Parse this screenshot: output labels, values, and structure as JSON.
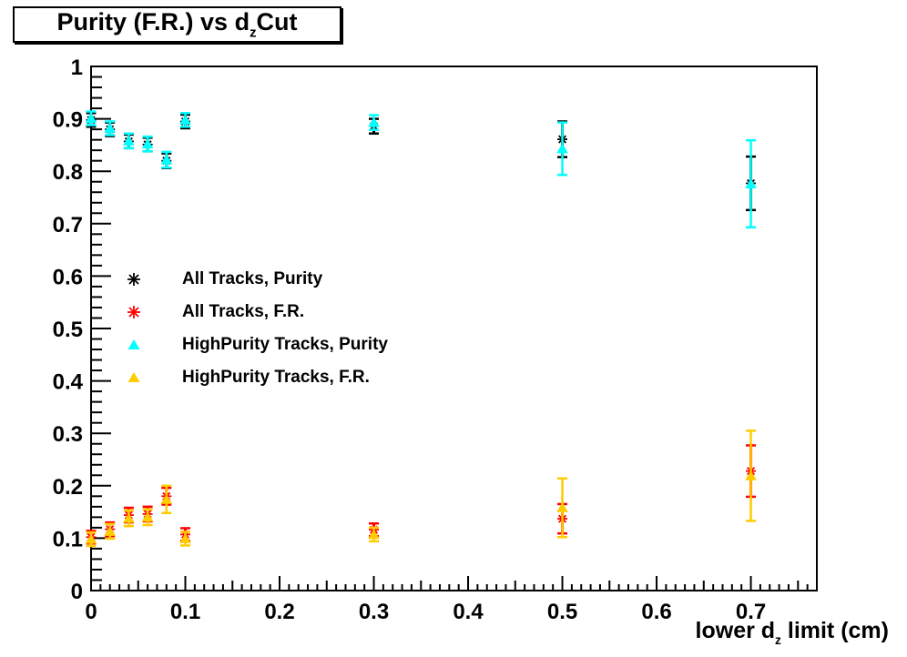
{
  "title": {
    "pre": "Purity (F.R.) vs d",
    "sub": "z",
    "post": "Cut"
  },
  "chart_data": {
    "type": "scatter",
    "title": "Purity (F.R.) vs d_z Cut",
    "xlabel_parts": {
      "pre": "lower d",
      "sub": "z",
      "post": " limit (cm)"
    },
    "ylabel": "",
    "xlim": [
      0,
      0.77
    ],
    "ylim": [
      0,
      1
    ],
    "x_tick_values": [
      0,
      0.1,
      0.2,
      0.3,
      0.4,
      0.5,
      0.6,
      0.7
    ],
    "x_tick_labels": [
      "0",
      "0.1",
      "0.2",
      "0.3",
      "0.4",
      "0.5",
      "0.6",
      "0.7"
    ],
    "x_minor_step": 0.01,
    "y_tick_values": [
      0,
      0.1,
      0.2,
      0.3,
      0.4,
      0.5,
      0.6,
      0.7,
      0.8,
      0.9,
      1
    ],
    "y_tick_labels": [
      "0",
      "0.1",
      "0.2",
      "0.3",
      "0.4",
      "0.5",
      "0.6",
      "0.7",
      "0.8",
      "0.9",
      "1"
    ],
    "y_minor_step": 0.02,
    "grid": false,
    "legend_position": "middle-left",
    "series": [
      {
        "name": "All Tracks, Purity",
        "marker": "asterisk",
        "color": "#000000",
        "points": [
          {
            "x": 0.0,
            "y": 0.898,
            "ey": 0.013
          },
          {
            "x": 0.02,
            "y": 0.88,
            "ey": 0.013
          },
          {
            "x": 0.04,
            "y": 0.857,
            "ey": 0.013
          },
          {
            "x": 0.06,
            "y": 0.851,
            "ey": 0.013
          },
          {
            "x": 0.08,
            "y": 0.82,
            "ey": 0.014
          },
          {
            "x": 0.1,
            "y": 0.895,
            "ey": 0.013
          },
          {
            "x": 0.3,
            "y": 0.886,
            "ey": 0.014
          },
          {
            "x": 0.5,
            "y": 0.861,
            "ey": 0.034
          },
          {
            "x": 0.7,
            "y": 0.777,
            "ey": 0.051
          }
        ]
      },
      {
        "name": "All Tracks, F.R.",
        "marker": "asterisk",
        "color": "#ff0000",
        "points": [
          {
            "x": 0.0,
            "y": 0.102,
            "ey": 0.012
          },
          {
            "x": 0.02,
            "y": 0.117,
            "ey": 0.013
          },
          {
            "x": 0.04,
            "y": 0.144,
            "ey": 0.014
          },
          {
            "x": 0.06,
            "y": 0.146,
            "ey": 0.014
          },
          {
            "x": 0.08,
            "y": 0.18,
            "ey": 0.016
          },
          {
            "x": 0.1,
            "y": 0.107,
            "ey": 0.012
          },
          {
            "x": 0.3,
            "y": 0.116,
            "ey": 0.012
          },
          {
            "x": 0.5,
            "y": 0.137,
            "ey": 0.028
          },
          {
            "x": 0.7,
            "y": 0.228,
            "ey": 0.049
          }
        ]
      },
      {
        "name": "HighPurity Tracks, Purity",
        "marker": "triangle",
        "color": "#00ffff",
        "points": [
          {
            "x": 0.0,
            "y": 0.901,
            "ey": 0.013
          },
          {
            "x": 0.02,
            "y": 0.882,
            "ey": 0.013
          },
          {
            "x": 0.04,
            "y": 0.858,
            "ey": 0.014
          },
          {
            "x": 0.06,
            "y": 0.852,
            "ey": 0.014
          },
          {
            "x": 0.08,
            "y": 0.822,
            "ey": 0.015
          },
          {
            "x": 0.1,
            "y": 0.898,
            "ey": 0.013
          },
          {
            "x": 0.3,
            "y": 0.893,
            "ey": 0.014
          },
          {
            "x": 0.5,
            "y": 0.843,
            "ey": 0.05
          },
          {
            "x": 0.7,
            "y": 0.776,
            "ey": 0.083
          }
        ]
      },
      {
        "name": "HighPurity Tracks, F.R.",
        "marker": "triangle",
        "color": "#ffcc00",
        "points": [
          {
            "x": 0.0,
            "y": 0.098,
            "ey": 0.013
          },
          {
            "x": 0.02,
            "y": 0.113,
            "ey": 0.014
          },
          {
            "x": 0.04,
            "y": 0.138,
            "ey": 0.015
          },
          {
            "x": 0.06,
            "y": 0.14,
            "ey": 0.015
          },
          {
            "x": 0.08,
            "y": 0.174,
            "ey": 0.026
          },
          {
            "x": 0.1,
            "y": 0.099,
            "ey": 0.013
          },
          {
            "x": 0.3,
            "y": 0.107,
            "ey": 0.013
          },
          {
            "x": 0.5,
            "y": 0.158,
            "ey": 0.056
          },
          {
            "x": 0.7,
            "y": 0.219,
            "ey": 0.086
          }
        ]
      }
    ]
  },
  "legend": {
    "items": [
      {
        "label": "All Tracks, Purity",
        "marker": "asterisk",
        "color": "#000000"
      },
      {
        "label": "All Tracks, F.R.",
        "marker": "asterisk",
        "color": "#ff0000"
      },
      {
        "label": "HighPurity Tracks, Purity",
        "marker": "triangle",
        "color": "#00ffff"
      },
      {
        "label": "HighPurity Tracks, F.R.",
        "marker": "triangle",
        "color": "#ffcc00"
      }
    ]
  }
}
